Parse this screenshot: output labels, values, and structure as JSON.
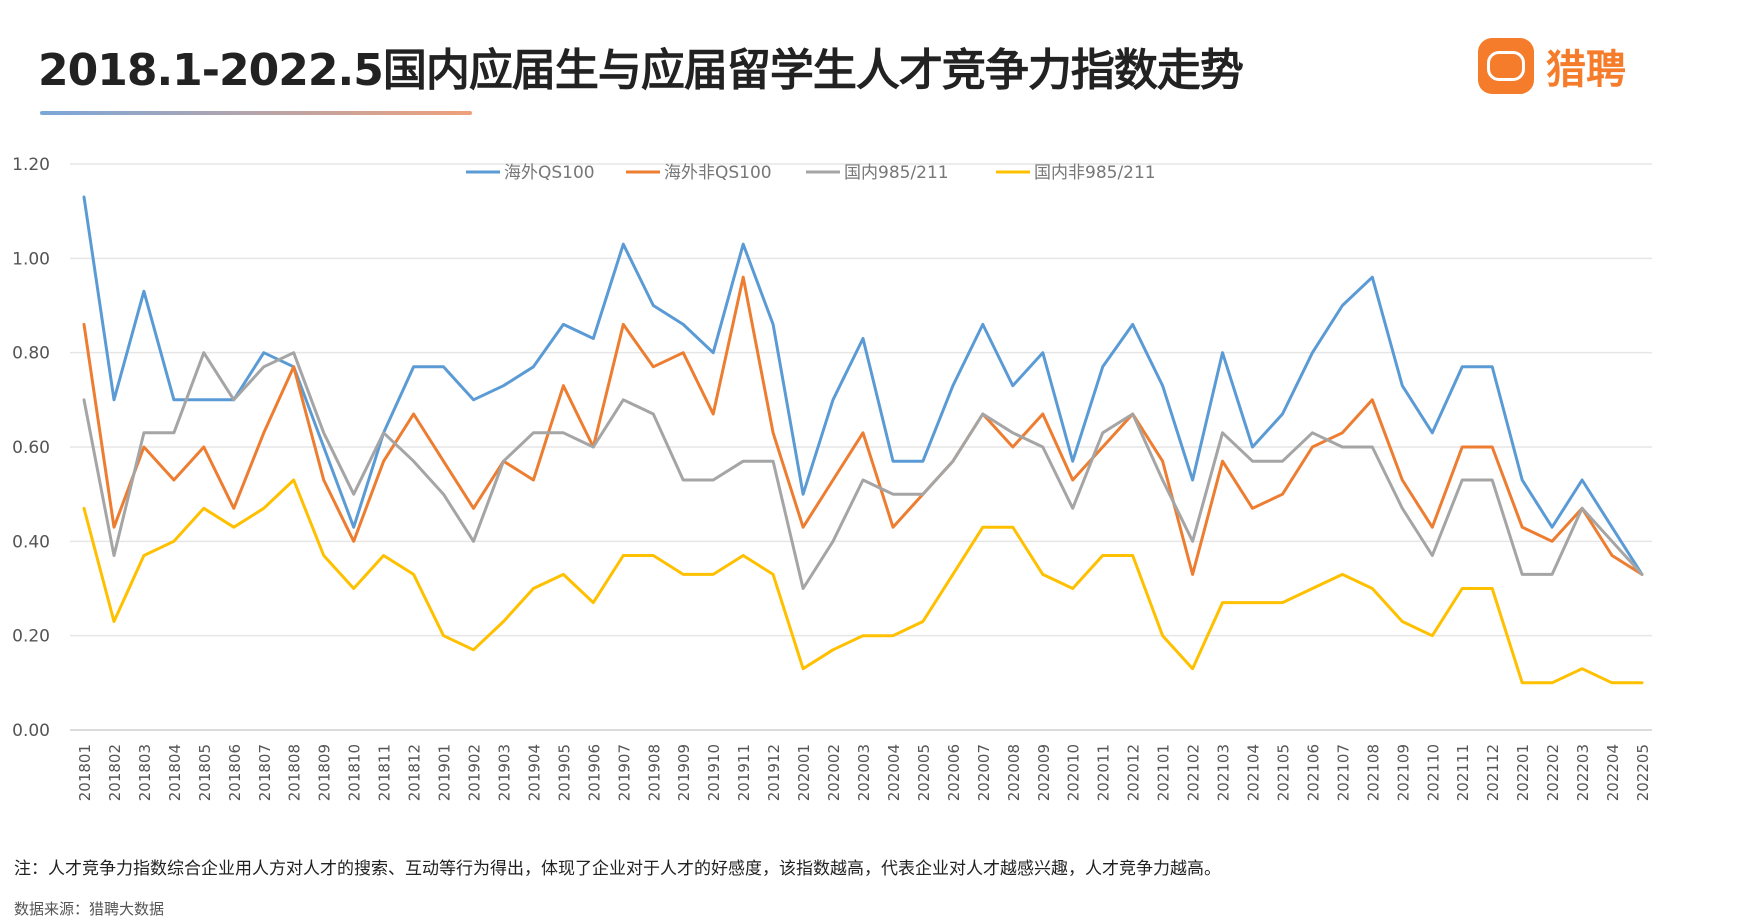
{
  "header": {
    "title": "2018.1-2022.5国内应届生与应届留学生人才竞争力指数走势",
    "logo_text": "猎聘",
    "logo_icon": "liepin-chat-bubble-icon",
    "logo_color": "#f57c2a"
  },
  "footer": {
    "note": "注：人才竞争力指数综合企业用人方对人才的搜索、互动等行为得出，体现了企业对于人才的好感度，该指数越高，代表企业对人才越感兴趣，人才竞争力越高。",
    "source": "数据来源：猎聘大数据"
  },
  "chart_data": {
    "type": "line",
    "title": "",
    "xlabel": "",
    "ylabel": "",
    "ylim": [
      0,
      1.2
    ],
    "yticks": [
      "0.00",
      "0.20",
      "0.40",
      "0.60",
      "0.80",
      "1.00",
      "1.20"
    ],
    "grid": true,
    "legend_position": "top-center",
    "x": [
      "201801",
      "201802",
      "201803",
      "201804",
      "201805",
      "201806",
      "201807",
      "201808",
      "201809",
      "201810",
      "201811",
      "201812",
      "201901",
      "201902",
      "201903",
      "201904",
      "201905",
      "201906",
      "201907",
      "201908",
      "201909",
      "201910",
      "201911",
      "201912",
      "202001",
      "202002",
      "202003",
      "202004",
      "202005",
      "202006",
      "202007",
      "202008",
      "202009",
      "202010",
      "202011",
      "202012",
      "202101",
      "202102",
      "202103",
      "202104",
      "202105",
      "202106",
      "202107",
      "202108",
      "202109",
      "202110",
      "202111",
      "202112",
      "202201",
      "202202",
      "202203",
      "202204",
      "202205"
    ],
    "series": [
      {
        "name": "海外QS100",
        "color": "#5b9bd5",
        "values": [
          1.13,
          0.7,
          0.93,
          0.7,
          0.7,
          0.7,
          0.8,
          0.77,
          0.6,
          0.43,
          0.63,
          0.77,
          0.77,
          0.7,
          0.73,
          0.77,
          0.86,
          0.83,
          1.03,
          0.9,
          0.86,
          0.8,
          1.03,
          0.86,
          0.5,
          0.7,
          0.83,
          0.57,
          0.57,
          0.73,
          0.86,
          0.73,
          0.8,
          0.57,
          0.77,
          0.86,
          0.73,
          0.53,
          0.8,
          0.6,
          0.67,
          0.8,
          0.9,
          0.96,
          0.73,
          0.63,
          0.77,
          0.77,
          0.53,
          0.43,
          0.53,
          0.43,
          0.33
        ]
      },
      {
        "name": "海外非QS100",
        "color": "#ed7d31",
        "values": [
          0.86,
          0.43,
          0.6,
          0.53,
          0.6,
          0.47,
          0.63,
          0.77,
          0.53,
          0.4,
          0.57,
          0.67,
          0.57,
          0.47,
          0.57,
          0.53,
          0.73,
          0.6,
          0.86,
          0.77,
          0.8,
          0.67,
          0.96,
          0.63,
          0.43,
          0.53,
          0.63,
          0.43,
          0.5,
          0.57,
          0.67,
          0.6,
          0.67,
          0.53,
          0.6,
          0.67,
          0.57,
          0.33,
          0.57,
          0.47,
          0.5,
          0.6,
          0.63,
          0.7,
          0.53,
          0.43,
          0.6,
          0.6,
          0.43,
          0.4,
          0.47,
          0.37,
          0.33
        ]
      },
      {
        "name": "国内985/211",
        "color": "#a5a5a5",
        "values": [
          0.7,
          0.37,
          0.63,
          0.63,
          0.8,
          0.7,
          0.77,
          0.8,
          0.63,
          0.5,
          0.63,
          0.57,
          0.5,
          0.4,
          0.57,
          0.63,
          0.63,
          0.6,
          0.7,
          0.67,
          0.53,
          0.53,
          0.57,
          0.57,
          0.3,
          0.4,
          0.53,
          0.5,
          0.5,
          0.57,
          0.67,
          0.63,
          0.6,
          0.47,
          0.63,
          0.67,
          0.53,
          0.4,
          0.63,
          0.57,
          0.57,
          0.63,
          0.6,
          0.6,
          0.47,
          0.37,
          0.53,
          0.53,
          0.33,
          0.33,
          0.47,
          0.4,
          0.33
        ]
      },
      {
        "name": "国内非985/211",
        "color": "#ffc000",
        "values": [
          0.47,
          0.23,
          0.37,
          0.4,
          0.47,
          0.43,
          0.47,
          0.53,
          0.37,
          0.3,
          0.37,
          0.33,
          0.2,
          0.17,
          0.23,
          0.3,
          0.33,
          0.27,
          0.37,
          0.37,
          0.33,
          0.33,
          0.37,
          0.33,
          0.13,
          0.17,
          0.2,
          0.2,
          0.23,
          0.33,
          0.43,
          0.43,
          0.33,
          0.3,
          0.37,
          0.37,
          0.2,
          0.13,
          0.27,
          0.27,
          0.27,
          0.3,
          0.33,
          0.3,
          0.23,
          0.2,
          0.3,
          0.3,
          0.1,
          0.1,
          0.13,
          0.1,
          0.1
        ]
      }
    ]
  }
}
